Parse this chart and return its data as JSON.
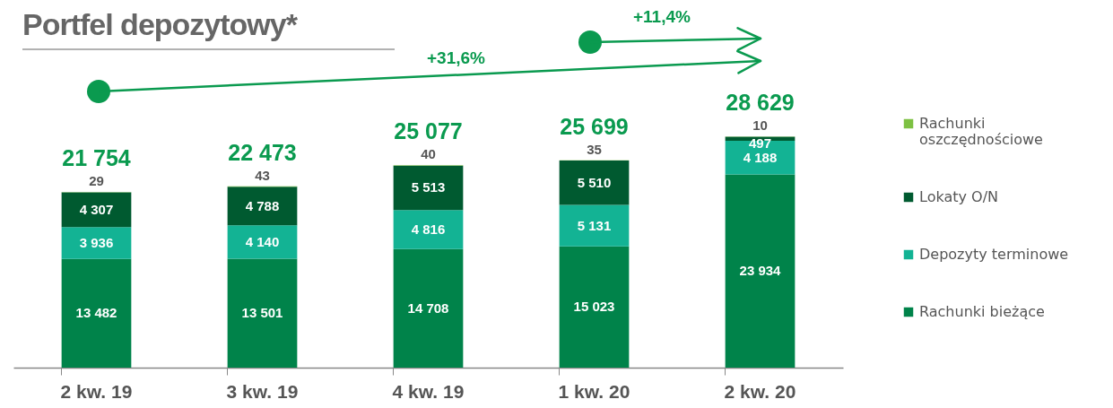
{
  "chart_data": {
    "type": "bar",
    "title": "Portfel depozytowy*",
    "stacked": true,
    "data_labels": true,
    "legend": "right",
    "categories": [
      "2 kw. 19",
      "3 kw. 19",
      "4 kw. 19",
      "1 kw. 20",
      "2 kw. 20"
    ],
    "series": [
      {
        "name": "Rachunki bieżące",
        "color": "#00834a",
        "values": [
          13482,
          13501,
          14708,
          15023,
          23934
        ]
      },
      {
        "name": "Depozyty terminowe",
        "color": "#13b394",
        "values": [
          3936,
          4140,
          4816,
          5131,
          4188
        ]
      },
      {
        "name": "Lokaty O/N",
        "color": "#005a30",
        "values": [
          4307,
          4788,
          5513,
          5510,
          497
        ]
      },
      {
        "name": "Rachunki oszczędnościowe",
        "color": "#7dc142",
        "values": [
          29,
          43,
          40,
          35,
          10
        ]
      }
    ],
    "totals": [
      "21 754",
      "22 473",
      "25 077",
      "25 699",
      "28 629"
    ],
    "annotations": [
      "+31,6%",
      "+11,4%"
    ]
  }
}
